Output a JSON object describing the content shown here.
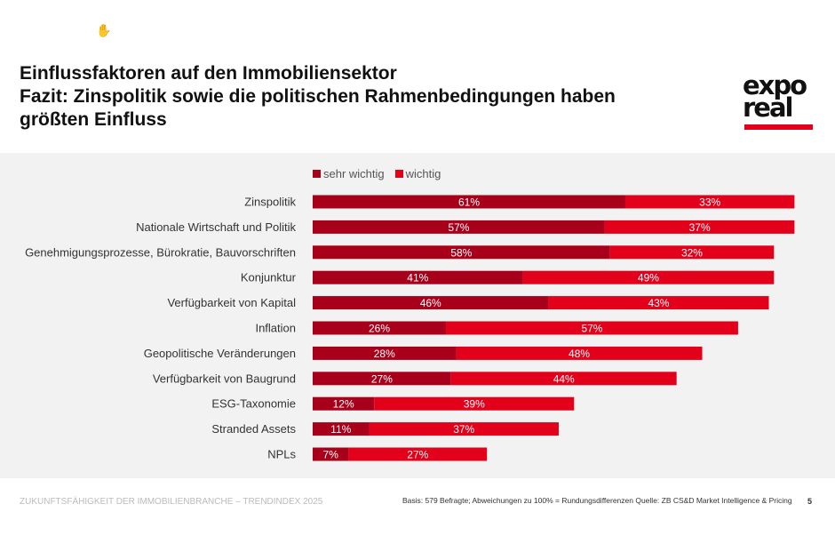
{
  "header": {
    "title_line1": "Einflussfaktoren auf den Immobiliensektor",
    "title_line2": "Fazit: Zinspolitik sowie die politischen Rahmenbedingungen haben",
    "title_line3": "größten Einfluss"
  },
  "logo": {
    "line1": "expo",
    "line2": "real"
  },
  "footer": {
    "left": "ZUKUNFTSFÄHIGKEIT DER IMMOBILIENBRANCHE – TRENDINDEX 2025",
    "source": "Basis: 579 Befragte; Abweichungen zu 100% = Rundungsdifferenzen Quelle: ZB CS&D Market Intelligence & Pricing",
    "page": "5"
  },
  "colors": {
    "sehr_wichtig": "#a8001a",
    "wichtig": "#e2001a"
  },
  "chart_data": {
    "type": "bar",
    "orientation": "horizontal",
    "stacked": true,
    "categories": [
      "Zinspolitik",
      "Nationale Wirtschaft und Politik",
      "Genehmigungsprozesse, Bürokratie, Bauvorschriften",
      "Konjunktur",
      "Verfügbarkeit von Kapital",
      "Inflation",
      "Geopolitische Veränderungen",
      "Verfügbarkeit von Baugrund",
      "ESG-Taxonomie",
      "Stranded Assets",
      "NPLs"
    ],
    "series": [
      {
        "name": "sehr wichtig",
        "values": [
          61,
          57,
          58,
          41,
          46,
          26,
          28,
          27,
          12,
          11,
          7
        ]
      },
      {
        "name": "wichtig",
        "values": [
          33,
          37,
          32,
          49,
          43,
          57,
          48,
          44,
          39,
          37,
          27
        ]
      }
    ],
    "value_suffix": "%",
    "legend_position": "top",
    "xlim": [
      0,
      100
    ],
    "grid": false
  }
}
